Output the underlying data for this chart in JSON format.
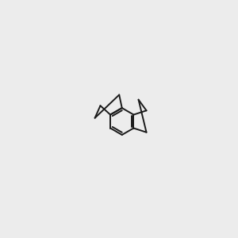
{
  "bg_color": "#ececec",
  "bond_color": "#1a1a1a",
  "o_color": "#ee0000",
  "n_color": "#1414cc",
  "f_color": "#bb00bb",
  "nh_color": "#888888",
  "figsize": [
    3.0,
    3.0
  ],
  "dpi": 100,
  "lw": 1.4
}
